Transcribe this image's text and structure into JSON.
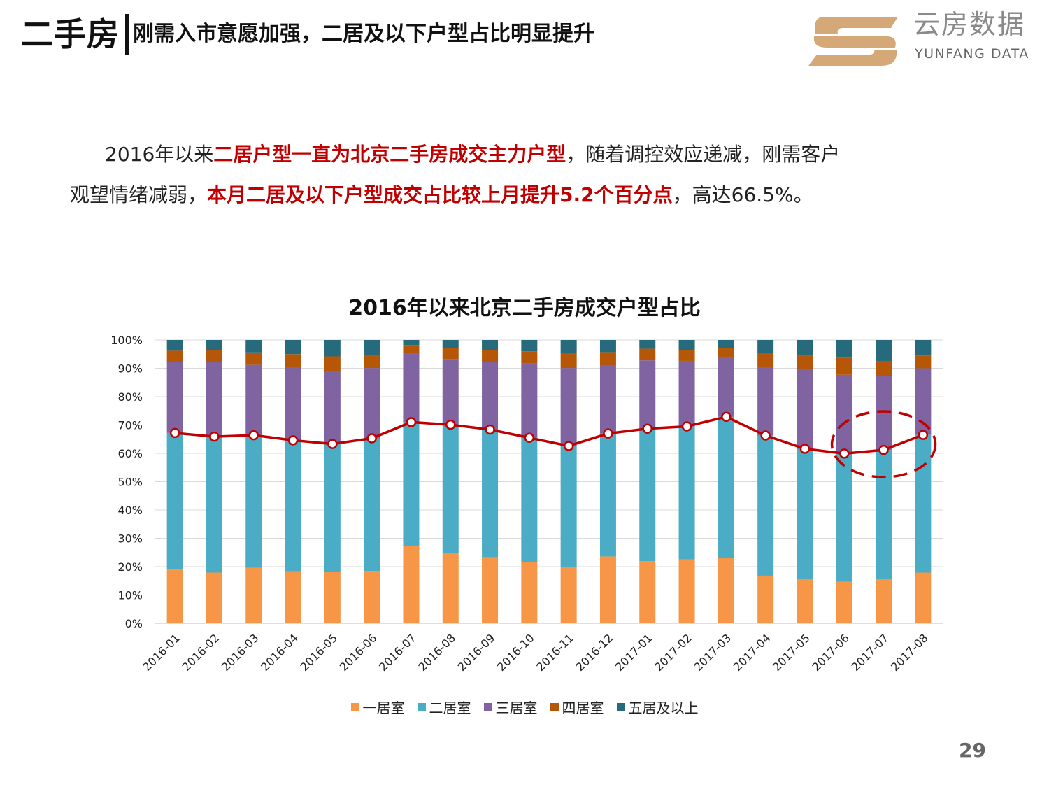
{
  "header": {
    "main_title": "二手房",
    "subtitle": "刚需入市意愿加强，二居及以下户型占比明显提升"
  },
  "logo": {
    "name_cn": "云房数据",
    "name_en": "YUNFANG DATA",
    "colors": {
      "mark": "#d4a877"
    }
  },
  "paragraph": {
    "l1_a": "2016年以来",
    "l1_b": "二居户型一直为北京二手房成交主力户型",
    "l1_c": "，随着调控效应递减，刚需客户",
    "l2_a": "观望情绪减弱，",
    "l2_b": "本月二居及以下户型成交占比较上月提升5.2个百分点",
    "l2_c": "，高达66.5%。"
  },
  "chart_data": {
    "type": "bar",
    "stacked": true,
    "title": "2016年以来北京二手房成交户型占比",
    "xlabel": "",
    "ylabel": "",
    "ylim": [
      0,
      100
    ],
    "yticks": [
      "0%",
      "10%",
      "20%",
      "30%",
      "40%",
      "50%",
      "60%",
      "70%",
      "80%",
      "90%",
      "100%"
    ],
    "grid": true,
    "legend_position": "bottom",
    "categories": [
      "2016-01",
      "2016-02",
      "2016-03",
      "2016-04",
      "2016-05",
      "2016-06",
      "2016-07",
      "2016-08",
      "2016-09",
      "2016-10",
      "2016-11",
      "2016-12",
      "2017-01",
      "2017-02",
      "2017-03",
      "2017-04",
      "2017-05",
      "2017-06",
      "2017-07",
      "2017-08"
    ],
    "series": [
      {
        "name": "一居室",
        "color": "#f79646",
        "values": [
          19.0,
          17.9,
          19.6,
          18.4,
          18.2,
          18.5,
          27.2,
          24.8,
          23.3,
          21.6,
          20.0,
          23.6,
          21.9,
          22.6,
          23.0,
          16.8,
          15.6,
          14.7,
          15.7,
          17.9
        ]
      },
      {
        "name": "二居室",
        "color": "#4bacc6",
        "values": [
          48.2,
          48.0,
          46.8,
          46.2,
          45.1,
          46.8,
          43.8,
          45.3,
          45.1,
          43.9,
          42.6,
          43.4,
          46.8,
          46.9,
          49.9,
          49.5,
          46.0,
          45.2,
          45.5,
          48.6
        ]
      },
      {
        "name": "三居室",
        "color": "#8064a2",
        "values": [
          24.9,
          26.4,
          24.8,
          25.8,
          25.7,
          24.8,
          24.2,
          23.2,
          23.8,
          26.2,
          27.5,
          24.0,
          24.1,
          23.1,
          20.7,
          24.2,
          27.8,
          27.8,
          26.2,
          23.5
        ]
      },
      {
        "name": "四居室",
        "color": "#b65708",
        "values": [
          4.1,
          4.0,
          4.4,
          4.6,
          5.2,
          4.5,
          3.0,
          3.8,
          4.1,
          4.3,
          5.3,
          4.7,
          4.1,
          3.9,
          3.5,
          4.9,
          5.0,
          6.1,
          5.2,
          4.5
        ]
      },
      {
        "name": "五居及以上",
        "color": "#276a7c",
        "values": [
          3.8,
          3.7,
          4.4,
          5.0,
          5.8,
          5.4,
          1.8,
          2.9,
          3.7,
          4.0,
          4.6,
          4.3,
          3.1,
          3.5,
          2.9,
          4.6,
          5.6,
          6.2,
          7.4,
          5.5
        ]
      }
    ],
    "line_series": {
      "name": "二居及以下",
      "color": "#c00000",
      "values": [
        67.2,
        65.9,
        66.4,
        64.6,
        63.3,
        65.3,
        71.0,
        70.1,
        68.4,
        65.5,
        62.6,
        67.0,
        68.7,
        69.5,
        72.9,
        66.3,
        61.6,
        59.9,
        61.2,
        66.5
      ]
    },
    "annotation": {
      "type": "dashed-ellipse",
      "color": "#c00000",
      "around": [
        "2017-06",
        "2017-07",
        "2017-08"
      ]
    }
  },
  "page_number": "29"
}
